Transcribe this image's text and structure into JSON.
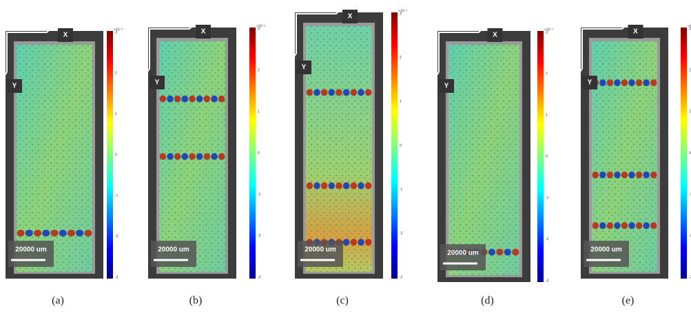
{
  "panels": [
    {
      "caption": "(a)",
      "axis_x": "X",
      "axis_y": "Y",
      "scale_bar": "20000 um",
      "colorbar": {
        "exponent": "×10⁻³",
        "ticks": [
          3,
          2,
          1,
          0,
          -1,
          -2,
          -3
        ]
      }
    },
    {
      "caption": "(b)",
      "axis_x": "X",
      "axis_y": "Y",
      "scale_bar": "20000 um",
      "colorbar": {
        "exponent": "×10⁻³",
        "ticks": [
          3,
          2,
          1,
          0,
          -1,
          -2,
          -3
        ]
      }
    },
    {
      "caption": "(c)",
      "axis_x": "X",
      "axis_y": "Y",
      "scale_bar": "20000 um",
      "colorbar": {
        "exponent": "×10⁻³",
        "ticks": [
          3,
          2,
          1,
          0,
          -1,
          -2,
          -3
        ]
      }
    },
    {
      "caption": "(d)",
      "axis_x": "X",
      "axis_y": "Y",
      "scale_bar": "20000 um",
      "colorbar": {
        "exponent": "×10⁻³",
        "ticks": [
          3,
          2,
          1,
          0,
          -1,
          -2,
          -3
        ]
      }
    },
    {
      "caption": "(e)",
      "axis_x": "X",
      "axis_y": "Y",
      "scale_bar": "20000 um",
      "colorbar": {
        "exponent": "×10⁻³",
        "ticks": [
          3,
          2,
          1,
          0,
          -1,
          -2,
          -3
        ]
      }
    }
  ]
}
